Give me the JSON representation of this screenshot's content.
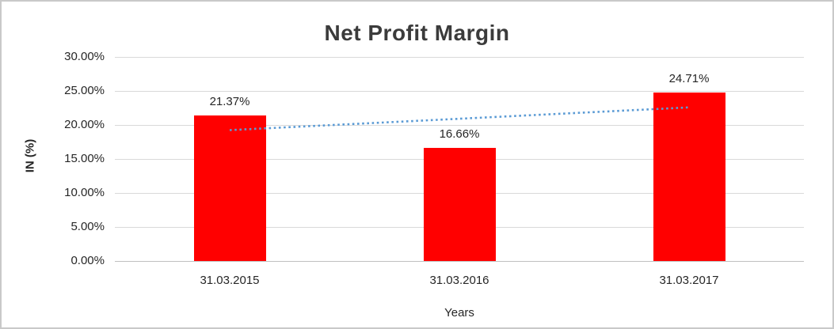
{
  "chart_data": {
    "type": "bar",
    "title": "Net Profit Margin",
    "xlabel": "Years",
    "ylabel": "IN (%)",
    "categories": [
      "31.03.2015",
      "31.03.2016",
      "31.03.2017"
    ],
    "values": [
      21.37,
      16.66,
      24.71
    ],
    "data_labels": [
      "21.37%",
      "16.66%",
      "24.71%"
    ],
    "ylim": [
      0,
      30
    ],
    "ytick_step": 5,
    "ytick_labels": [
      "0.00%",
      "5.00%",
      "10.00%",
      "15.00%",
      "20.00%",
      "25.00%",
      "30.00%"
    ],
    "grid": true,
    "legend": "none",
    "bar_color": "#ff0000",
    "gridline_color": "#d9d9d9",
    "text_color": "#262626",
    "title_color": "#3b3b3b",
    "trendline": {
      "type": "linear",
      "color": "#5b9bd5",
      "style": "dotted"
    }
  }
}
